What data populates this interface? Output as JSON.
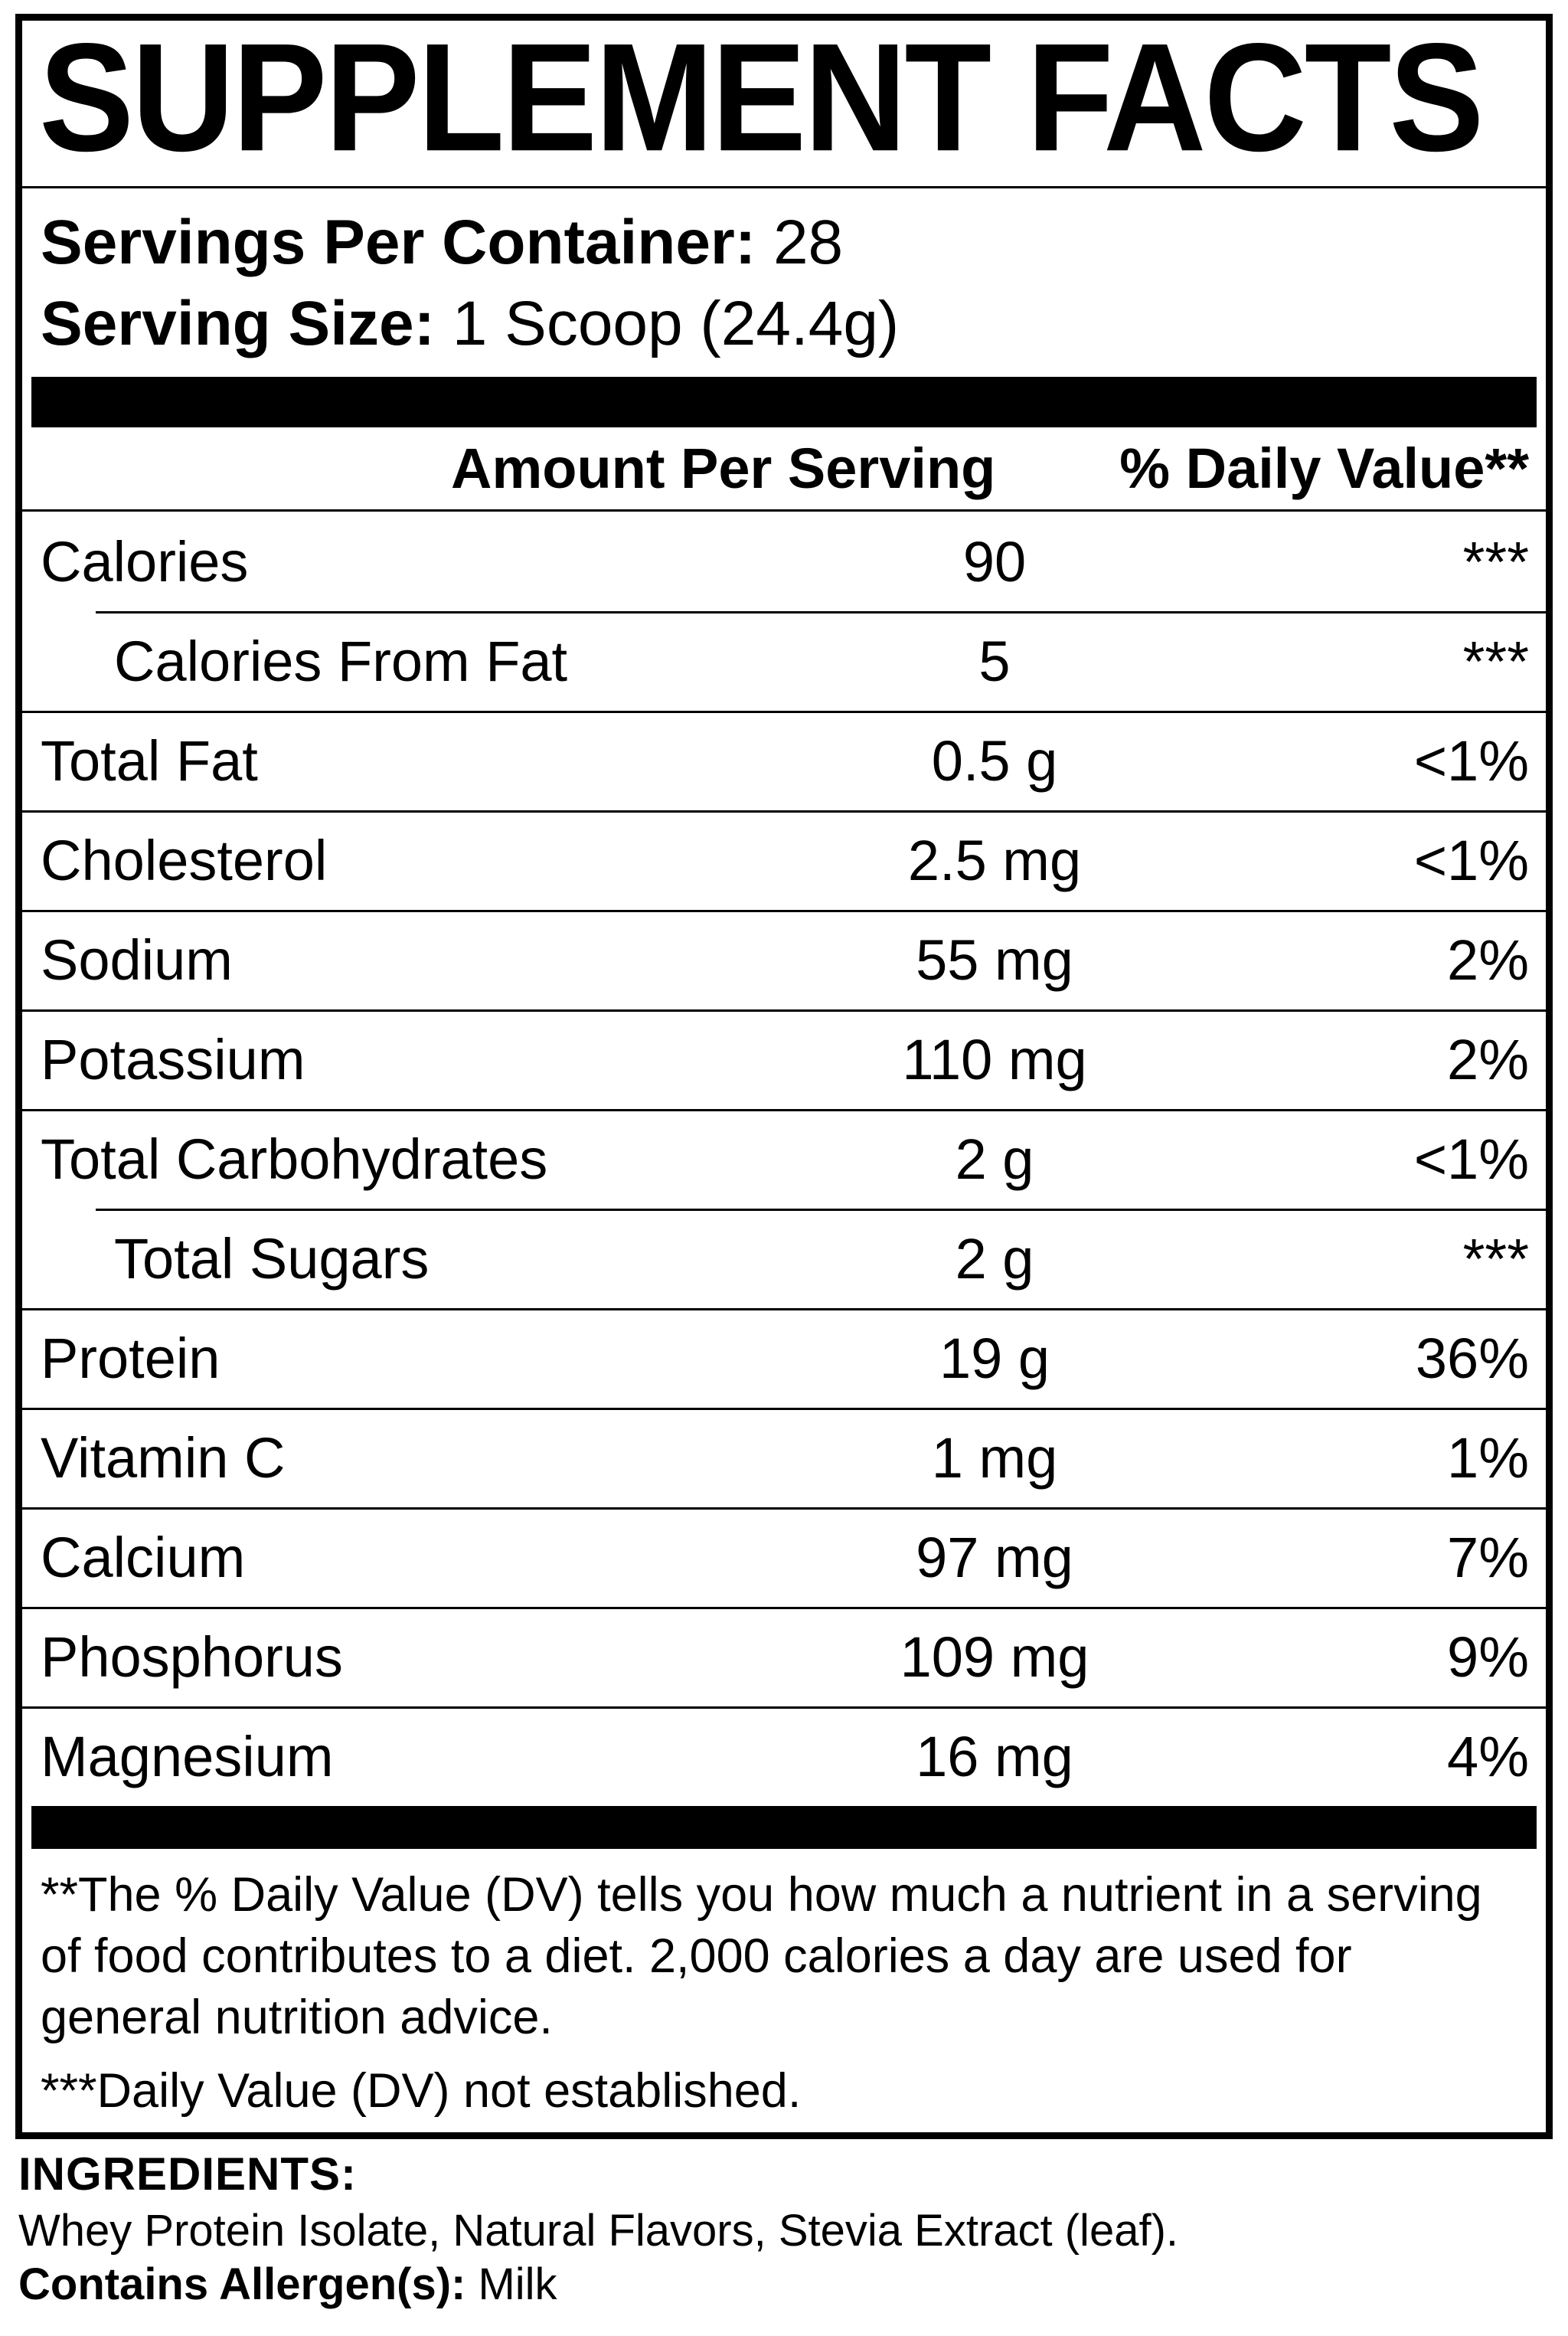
{
  "title": "SUPPLEMENT FACTS",
  "serving_info": {
    "servings_label": "Servings Per Container:",
    "servings_value": "28",
    "size_label": "Serving Size:",
    "size_value": "1 Scoop (24.4g)"
  },
  "table": {
    "header": {
      "amount": "Amount Per Serving",
      "dv": "% Daily Value**"
    },
    "rows": [
      {
        "name": "Calories",
        "amount": "90",
        "dv": "***",
        "indent": false
      },
      {
        "name": "Calories From Fat",
        "amount": "5",
        "dv": "***",
        "indent": true
      },
      {
        "name": "Total Fat",
        "amount": "0.5 g",
        "dv": "<1%",
        "indent": false
      },
      {
        "name": "Cholesterol",
        "amount": "2.5 mg",
        "dv": "<1%",
        "indent": false
      },
      {
        "name": "Sodium",
        "amount": "55 mg",
        "dv": "2%",
        "indent": false
      },
      {
        "name": "Potassium",
        "amount": "110 mg",
        "dv": "2%",
        "indent": false
      },
      {
        "name": "Total Carbohydrates",
        "amount": "2 g",
        "dv": "<1%",
        "indent": false
      },
      {
        "name": "Total Sugars",
        "amount": "2 g",
        "dv": "***",
        "indent": true
      },
      {
        "name": "Protein",
        "amount": "19 g",
        "dv": "36%",
        "indent": false
      },
      {
        "name": "Vitamin C",
        "amount": "1 mg",
        "dv": "1%",
        "indent": false
      },
      {
        "name": "Calcium",
        "amount": "97 mg",
        "dv": "7%",
        "indent": false
      },
      {
        "name": "Phosphorus",
        "amount": "109 mg",
        "dv": "9%",
        "indent": false
      },
      {
        "name": "Magnesium",
        "amount": "16 mg",
        "dv": "4%",
        "indent": false
      }
    ]
  },
  "footnotes": {
    "dv_note": "**The % Daily Value (DV) tells you how much a nutrient in a serving of food contributes to a diet. 2,000 calories a day are used for general nutrition advice.",
    "not_established_note": "***Daily Value (DV) not established."
  },
  "ingredients": {
    "heading": "INGREDIENTS:",
    "list": "Whey Protein Isolate, Natural Flavors, Stevia Extract (leaf).",
    "allergen_label": "Contains Allergen(s):",
    "allergen_value": "Milk"
  },
  "colors": {
    "text": "#000000",
    "background": "#ffffff",
    "divider": "#000000"
  }
}
